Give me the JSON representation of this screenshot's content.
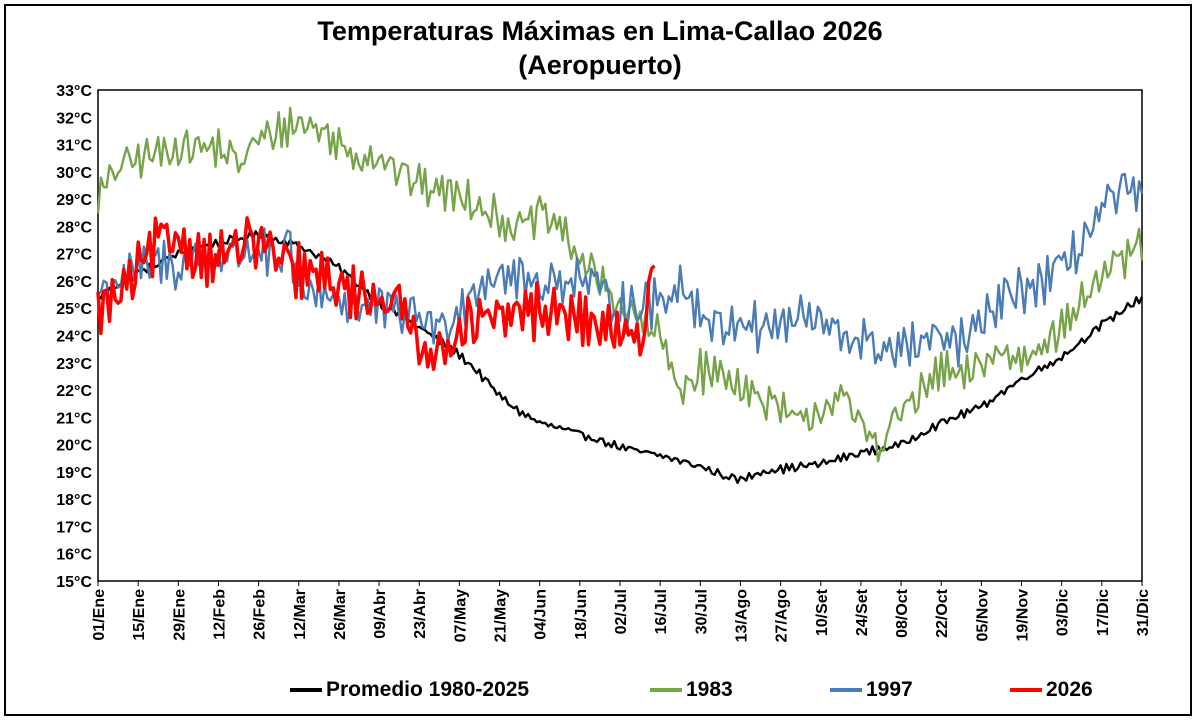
{
  "chart_data": {
    "type": "line",
    "title": "Temperaturas Máximas en Lima-Callao 2026",
    "subtitle": "(Aeropuerto)",
    "y_tick_labels": [
      "15°C",
      "16°C",
      "17°C",
      "18°C",
      "19°C",
      "20°C",
      "21°C",
      "22°C",
      "23°C",
      "24°C",
      "25°C",
      "26°C",
      "27°C",
      "28°C",
      "29°C",
      "30°C",
      "31°C",
      "32°C",
      "33°C"
    ],
    "ylim": [
      15,
      33
    ],
    "x_days": [
      1,
      365
    ],
    "x_tick_labels": [
      "01/Ene",
      "15/Ene",
      "29/Ene",
      "12/Feb",
      "26/Feb",
      "12/Mar",
      "26/Mar",
      "09/Abr",
      "23/Abr",
      "07/May",
      "21/May",
      "04/Jun",
      "18/Jun",
      "02/Jul",
      "16/Jul",
      "30/Jul",
      "13/Ago",
      "27/Ago",
      "10/Set",
      "24/Set",
      "08/Oct",
      "22/Oct",
      "05/Nov",
      "19/Nov",
      "03/Dic",
      "17/Dic",
      "31/Dic"
    ],
    "grid": false,
    "legend_position": "bottom",
    "series": [
      {
        "name": "Promedio 1980-2025",
        "color": "#000000",
        "noise": 0.15,
        "anchors": [
          [
            1,
            25.4
          ],
          [
            15,
            26.3
          ],
          [
            29,
            27.0
          ],
          [
            43,
            27.4
          ],
          [
            57,
            27.7
          ],
          [
            71,
            27.3
          ],
          [
            85,
            26.5
          ],
          [
            99,
            25.2
          ],
          [
            113,
            24.3
          ],
          [
            127,
            23.3
          ],
          [
            134,
            22.6
          ],
          [
            141,
            21.8
          ],
          [
            148,
            21.2
          ],
          [
            155,
            20.8
          ],
          [
            169,
            20.4
          ],
          [
            183,
            19.9
          ],
          [
            197,
            19.6
          ],
          [
            211,
            19.2
          ],
          [
            218,
            18.9
          ],
          [
            225,
            18.7
          ],
          [
            232,
            19.0
          ],
          [
            239,
            19.1
          ],
          [
            253,
            19.3
          ],
          [
            267,
            19.7
          ],
          [
            281,
            20.0
          ],
          [
            295,
            20.8
          ],
          [
            309,
            21.4
          ],
          [
            323,
            22.4
          ],
          [
            337,
            23.2
          ],
          [
            351,
            24.4
          ],
          [
            365,
            25.4
          ]
        ]
      },
      {
        "name": "1983",
        "color": "#77a44a",
        "noise": 0.75,
        "anchors": [
          [
            1,
            29.0
          ],
          [
            8,
            30.2
          ],
          [
            15,
            30.5
          ],
          [
            29,
            30.9
          ],
          [
            43,
            30.9
          ],
          [
            50,
            30.3
          ],
          [
            57,
            31.2
          ],
          [
            64,
            31.5
          ],
          [
            71,
            31.8
          ],
          [
            78,
            31.6
          ],
          [
            85,
            31.0
          ],
          [
            92,
            30.5
          ],
          [
            99,
            30.6
          ],
          [
            106,
            30.0
          ],
          [
            113,
            29.6
          ],
          [
            120,
            29.3
          ],
          [
            127,
            29.2
          ],
          [
            134,
            28.8
          ],
          [
            141,
            28.2
          ],
          [
            148,
            27.9
          ],
          [
            155,
            28.5
          ],
          [
            162,
            28.0
          ],
          [
            169,
            26.8
          ],
          [
            176,
            26.0
          ],
          [
            183,
            25.1
          ],
          [
            190,
            24.5
          ],
          [
            197,
            24.0
          ],
          [
            200,
            23.0
          ],
          [
            204,
            22.0
          ],
          [
            211,
            22.7
          ],
          [
            218,
            22.6
          ],
          [
            225,
            22.2
          ],
          [
            232,
            21.6
          ],
          [
            239,
            21.3
          ],
          [
            246,
            20.8
          ],
          [
            253,
            21.3
          ],
          [
            260,
            21.8
          ],
          [
            267,
            20.7
          ],
          [
            274,
            20.0
          ],
          [
            281,
            21.3
          ],
          [
            288,
            21.8
          ],
          [
            295,
            22.8
          ],
          [
            302,
            22.4
          ],
          [
            309,
            23.0
          ],
          [
            316,
            23.4
          ],
          [
            323,
            23.1
          ],
          [
            330,
            23.8
          ],
          [
            337,
            24.2
          ],
          [
            344,
            25.3
          ],
          [
            351,
            26.2
          ],
          [
            358,
            26.7
          ],
          [
            365,
            27.5
          ]
        ]
      },
      {
        "name": "1997",
        "color": "#4a7cb5",
        "noise": 0.9,
        "anchors": [
          [
            1,
            25.6
          ],
          [
            8,
            26.0
          ],
          [
            15,
            26.4
          ],
          [
            22,
            26.8
          ],
          [
            29,
            26.4
          ],
          [
            36,
            27.0
          ],
          [
            43,
            26.9
          ],
          [
            50,
            27.0
          ],
          [
            57,
            27.2
          ],
          [
            64,
            26.5
          ],
          [
            68,
            27.5
          ],
          [
            71,
            25.5
          ],
          [
            78,
            25.7
          ],
          [
            85,
            25.3
          ],
          [
            92,
            25.0
          ],
          [
            99,
            25.1
          ],
          [
            106,
            24.8
          ],
          [
            113,
            24.8
          ],
          [
            120,
            24.2
          ],
          [
            127,
            25.0
          ],
          [
            134,
            25.9
          ],
          [
            141,
            26.3
          ],
          [
            148,
            26.1
          ],
          [
            155,
            25.9
          ],
          [
            162,
            26.0
          ],
          [
            169,
            26.1
          ],
          [
            176,
            25.7
          ],
          [
            183,
            25.0
          ],
          [
            190,
            25.1
          ],
          [
            197,
            25.3
          ],
          [
            204,
            25.9
          ],
          [
            211,
            24.8
          ],
          [
            218,
            24.3
          ],
          [
            225,
            24.6
          ],
          [
            232,
            24.3
          ],
          [
            239,
            24.4
          ],
          [
            246,
            24.7
          ],
          [
            253,
            24.5
          ],
          [
            260,
            24.0
          ],
          [
            267,
            23.8
          ],
          [
            274,
            23.5
          ],
          [
            281,
            23.5
          ],
          [
            288,
            23.7
          ],
          [
            295,
            23.9
          ],
          [
            302,
            23.7
          ],
          [
            309,
            24.4
          ],
          [
            316,
            25.3
          ],
          [
            323,
            25.7
          ],
          [
            330,
            25.9
          ],
          [
            337,
            26.5
          ],
          [
            344,
            27.4
          ],
          [
            351,
            28.6
          ],
          [
            358,
            29.4
          ],
          [
            365,
            29.0
          ]
        ]
      },
      {
        "name": "2026",
        "color": "#ff0000",
        "noise": 1.0,
        "anchors": [
          [
            1,
            25.0
          ],
          [
            8,
            25.4
          ],
          [
            15,
            26.4
          ],
          [
            22,
            27.5
          ],
          [
            29,
            27.6
          ],
          [
            36,
            26.8
          ],
          [
            43,
            26.9
          ],
          [
            50,
            27.3
          ],
          [
            57,
            27.5
          ],
          [
            64,
            26.8
          ],
          [
            71,
            26.3
          ],
          [
            78,
            26.2
          ],
          [
            85,
            25.8
          ],
          [
            92,
            25.5
          ],
          [
            99,
            25.4
          ],
          [
            106,
            25.2
          ],
          [
            113,
            23.8
          ],
          [
            120,
            23.2
          ],
          [
            127,
            24.3
          ],
          [
            134,
            24.5
          ],
          [
            141,
            24.6
          ],
          [
            148,
            24.9
          ],
          [
            155,
            24.9
          ],
          [
            162,
            24.8
          ],
          [
            169,
            24.6
          ],
          [
            176,
            24.3
          ],
          [
            183,
            24.0
          ],
          [
            190,
            23.7
          ],
          [
            195,
            26.8
          ]
        ]
      }
    ]
  }
}
